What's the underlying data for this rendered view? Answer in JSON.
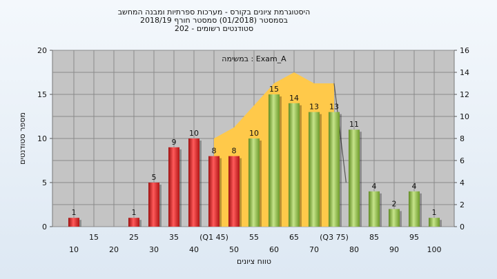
{
  "chart_data": {
    "type": "bar",
    "title_lines": [
      "היסטוגרמת ציונים בקורס - מערכות ספרתיות ומבנה המחשב",
      "בסמסטר  (01/2018)  סמסטר חורף 2018/19",
      "סטודנטים רשומים - 202"
    ],
    "subtitle": "במשימה : Exam_A",
    "xlabel": "טווח ציונים",
    "ylabel": "מספר סטודנטים",
    "ylim": [
      0,
      20
    ],
    "y_ticks": [
      0,
      5,
      10,
      15,
      20
    ],
    "y2lim": [
      0,
      16
    ],
    "y2_ticks": [
      0,
      2,
      4,
      6,
      8,
      10,
      12,
      14,
      16
    ],
    "grid": true,
    "categories": [
      10,
      15,
      20,
      25,
      30,
      35,
      40,
      45,
      50,
      55,
      60,
      65,
      70,
      75,
      80,
      85,
      90,
      95,
      100
    ],
    "x_tick_labels_upper": [
      "15",
      "25",
      "35",
      "(Q1 45)",
      "55",
      "65",
      "(Q3 75)",
      "85",
      "95"
    ],
    "x_tick_labels_lower": [
      "10",
      "20",
      "30",
      "40",
      "50",
      "60",
      "70",
      "80",
      "90",
      "100"
    ],
    "values": [
      1,
      0,
      0,
      1,
      5,
      9,
      10,
      8,
      8,
      10,
      15,
      14,
      13,
      13,
      11,
      4,
      2,
      4,
      1
    ],
    "bar_colors": [
      "red",
      "red",
      "red",
      "red",
      "red",
      "red",
      "red",
      "red",
      "red",
      "green",
      "green",
      "green",
      "green",
      "green",
      "green",
      "green",
      "green",
      "green",
      "green"
    ],
    "colors": {
      "red": "#e02828",
      "green": "#8fbe44",
      "band": "#ffc94a",
      "plot_bg": "#c4c4c4"
    },
    "band": {
      "x": [
        45,
        50,
        55,
        60,
        65,
        70,
        75
      ],
      "y": [
        8,
        9,
        11,
        13,
        14,
        13,
        13
      ]
    }
  }
}
